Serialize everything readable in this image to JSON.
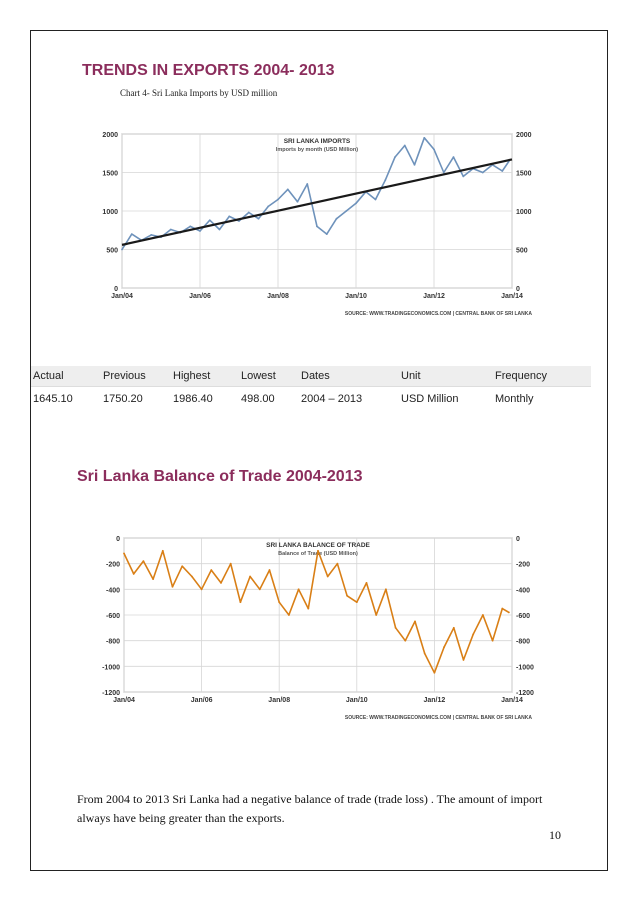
{
  "export_heading": "TRENDS IN EXPORTS 2004- 2013",
  "caption": "Chart 4- Sri Lanka Imports by USD million",
  "balance_heading": "Sri Lanka Balance of Trade 2004-2013",
  "summary": "From 2004 to 2013 Sri Lanka had a negative balance of trade (trade loss) . The amount of import always have being greater than the exports.",
  "page_number": "10",
  "stats_table": {
    "headers": [
      "Actual",
      "Previous",
      "Highest",
      "Lowest",
      "Dates",
      "Unit",
      "Frequency"
    ],
    "row": [
      "1645.10",
      "1750.20",
      "1986.40",
      "498.00",
      "2004 – 2013",
      "USD Million",
      "Monthly"
    ]
  },
  "chart_data": [
    {
      "type": "line",
      "title": "SRI LANKA IMPORTS",
      "subtitle": "Imports by month (USD Million)",
      "source": "SOURCE: WWW.TRADINGECONOMICS.COM | CENTRAL BANK OF SRI LANKA",
      "x_ticks": [
        "Jan/04",
        "Jan/06",
        "Jan/08",
        "Jan/10",
        "Jan/12",
        "Jan/14"
      ],
      "y_ticks": [
        "0",
        "500",
        "1000",
        "1500",
        "2000"
      ],
      "ylim": [
        0,
        2000
      ],
      "xlim": [
        2004,
        2014
      ],
      "grid": true,
      "colors": {
        "line": "#6e92bb",
        "trend": "#1a1a1a"
      },
      "trend": {
        "start": [
          2004.0,
          560
        ],
        "end": [
          2014.0,
          1670
        ]
      },
      "series": [
        {
          "x": [
            2004.0,
            2004.25,
            2004.5,
            2004.75,
            2005.0,
            2005.25,
            2005.5,
            2005.75,
            2006.0,
            2006.25,
            2006.5,
            2006.75,
            2007.0,
            2007.25,
            2007.5,
            2007.75,
            2008.0,
            2008.25,
            2008.5,
            2008.75,
            2009.0,
            2009.25,
            2009.5,
            2009.75,
            2010.0,
            2010.25,
            2010.5,
            2010.75,
            2011.0,
            2011.25,
            2011.5,
            2011.75,
            2012.0,
            2012.25,
            2012.5,
            2012.75,
            2013.0,
            2013.25,
            2013.5,
            2013.75,
            2013.92
          ],
          "y": [
            500,
            700,
            620,
            690,
            660,
            760,
            720,
            800,
            740,
            880,
            760,
            930,
            870,
            980,
            900,
            1060,
            1150,
            1280,
            1120,
            1350,
            800,
            700,
            900,
            1000,
            1100,
            1250,
            1150,
            1400,
            1700,
            1850,
            1600,
            1950,
            1800,
            1500,
            1700,
            1450,
            1550,
            1500,
            1600,
            1520,
            1645
          ]
        }
      ]
    },
    {
      "type": "line",
      "title": "SRI LANKA BALANCE OF TRADE",
      "subtitle": "Balance of Trade (USD Million)",
      "source": "SOURCE: WWW.TRADINGECONOMICS.COM | CENTRAL BANK OF SRI LANKA",
      "x_ticks": [
        "Jan/04",
        "Jan/06",
        "Jan/08",
        "Jan/10",
        "Jan/12",
        "Jan/14"
      ],
      "y_ticks": [
        "0",
        "-200",
        "-400",
        "-600",
        "-800",
        "-1000",
        "-1200"
      ],
      "ylim": [
        -1200,
        0
      ],
      "xlim": [
        2004,
        2014
      ],
      "grid": true,
      "colors": {
        "line": "#d97f16"
      },
      "series": [
        {
          "x": [
            2004.0,
            2004.25,
            2004.5,
            2004.75,
            2005.0,
            2005.25,
            2005.5,
            2005.75,
            2006.0,
            2006.25,
            2006.5,
            2006.75,
            2007.0,
            2007.25,
            2007.5,
            2007.75,
            2008.0,
            2008.25,
            2008.5,
            2008.75,
            2009.0,
            2009.25,
            2009.5,
            2009.75,
            2010.0,
            2010.25,
            2010.5,
            2010.75,
            2011.0,
            2011.25,
            2011.5,
            2011.75,
            2012.0,
            2012.25,
            2012.5,
            2012.75,
            2013.0,
            2013.25,
            2013.5,
            2013.75,
            2013.92
          ],
          "y": [
            -120,
            -280,
            -180,
            -320,
            -100,
            -380,
            -220,
            -300,
            -400,
            -250,
            -350,
            -200,
            -500,
            -300,
            -400,
            -250,
            -500,
            -600,
            -400,
            -550,
            -100,
            -300,
            -200,
            -450,
            -500,
            -350,
            -600,
            -400,
            -700,
            -800,
            -650,
            -900,
            -1050,
            -850,
            -700,
            -950,
            -750,
            -600,
            -800,
            -550,
            -580
          ]
        }
      ]
    }
  ]
}
